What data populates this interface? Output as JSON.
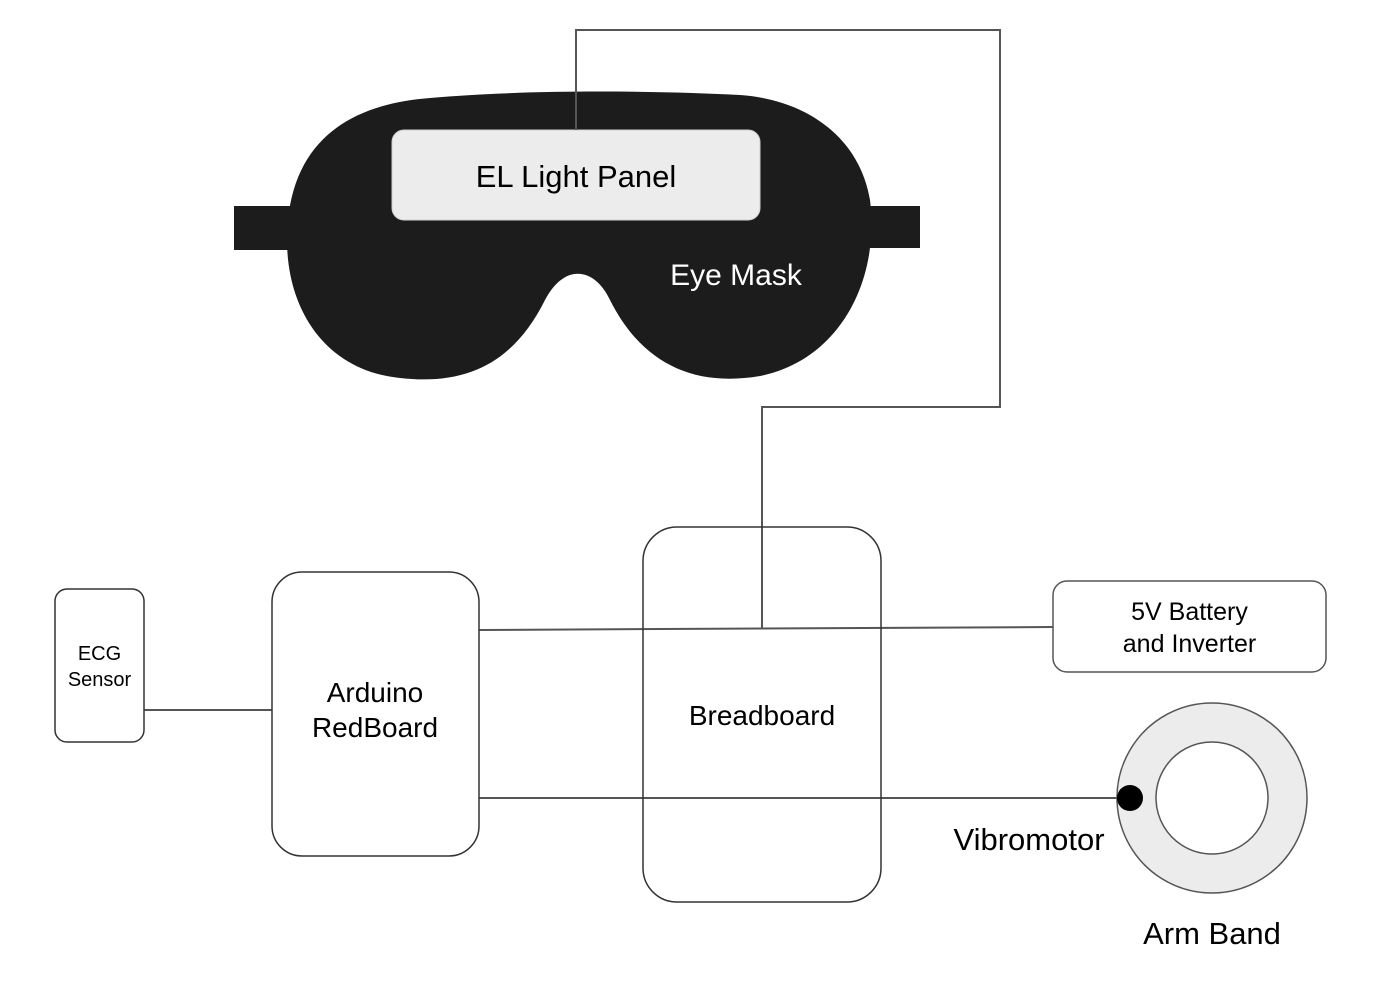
{
  "diagram": {
    "eye_mask": {
      "label": "Eye Mask",
      "panel_label": "EL Light Panel"
    },
    "ecg_sensor": {
      "line1": "ECG",
      "line2": "Sensor"
    },
    "arduino": {
      "line1": "Arduino",
      "line2": "RedBoard"
    },
    "breadboard": {
      "label": "Breadboard"
    },
    "battery": {
      "line1": "5V Battery",
      "line2": "and Inverter"
    },
    "vibromotor": {
      "label": "Vibromotor"
    },
    "arm_band": {
      "label": "Arm Band"
    }
  },
  "colors": {
    "mask": "#1c1c1c",
    "panel": "#ececec",
    "line": "#555555",
    "band": "#ececec"
  }
}
